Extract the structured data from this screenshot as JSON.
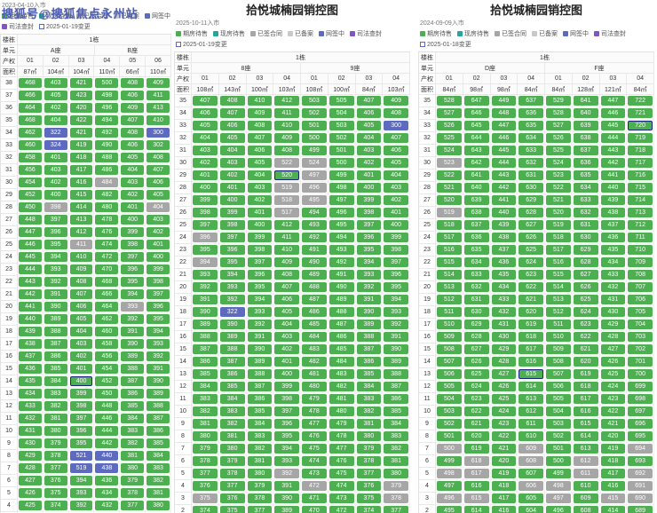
{
  "watermark": "搜狐号@搜狐焦点永州站",
  "colors": {
    "available": "#4caf50",
    "signed": "#a6a6a6",
    "online_signing": "#5c6bc0",
    "highlight_border": "#1a237e",
    "note_border": "#5c6bc0"
  },
  "panels": [
    {
      "title": "拾悦城楠园销控图",
      "date": "2023-04-10入市",
      "note": "2025-01-19变更",
      "building": "1栋",
      "row_labels": {
        "building": "楼栋",
        "unit": "单元",
        "code": "产权",
        "area": "面积"
      },
      "units": [
        {
          "name": "A座",
          "cols": 3
        },
        {
          "name": "B座",
          "cols": 3
        }
      ],
      "codes": [
        "01",
        "02",
        "03",
        "04",
        "05",
        "06"
      ],
      "areas": [
        "87㎡",
        "104㎡",
        "104㎡",
        "110㎡",
        "66㎡",
        "110㎡"
      ],
      "legend": [
        {
          "label": "期房待售",
          "color": "#4caf50"
        },
        {
          "label": "现房待售",
          "color": "#26a69a"
        },
        {
          "label": "已签合同",
          "color": "#a6a6a6"
        },
        {
          "label": "已备案",
          "color": "#c9c9c9"
        },
        {
          "label": "网签中",
          "color": "#5c6bc0"
        },
        {
          "label": "司法查封",
          "color": "#7e57c2"
        }
      ],
      "rows": [
        "38|468 403 421 500 408 409|gggggg",
        "37|466 405 423 498 406 411|gggggg",
        "36|464 402 420 496 409 413|gggggg",
        "35|468 404 422 494 407 410|gggggg",
        "34|462 322 421 492 408 300|gbgggb",
        "33|460 324 419 490 406 302|gbgggg",
        "32|458 401 418 488 405 408|gggggg",
        "31|456 403 417 486 404 407|gggggg",
        "30|454 402 416 484 403 406|gggagg",
        "29|452 400 415 482 402 405|gggggg",
        "28|450 398 414 480 401 404|gaggga",
        "27|448 397 413 478 400 403|gggggg",
        "26|447 396 412 476 399 402|gggggg",
        "25|446 395 411 474 398 401|ggaggg",
        "24|445 394 410 472 397 400|gggggg",
        "23|444 393 409 470 396 399|gggggg",
        "22|443 392 408 468 395 398|gggggg",
        "21|442 391 407 466 394 397|gggggg",
        "20|441 390 406 464 393 396|ggggag",
        "19|440 389 405 462 392 395|gggggg",
        "18|439 388 404 460 391 394|gggggg",
        "17|438 387 403 458 390 393|gggggg",
        "16|437 386 402 456 389 392|gggggg",
        "15|436 385 401 454 388 391|gggggg",
        "14|435 384 400 452 387 390|gghggg",
        "13|434 383 399 450 386 389|gggggg",
        "12|433 382 398 448 385 388|gggggg",
        "11|432 381 397 446 384 387|gggggg",
        "10|431 380 396 444 383 386|gggggg",
        "9|430 379 395 442 382 385|gggggg",
        "8|429 378 521 440 381 384|ggbbgg",
        "7|428 377 519 438 380 383|ggbbgg",
        "6|427 376 394 436 379 382|gggggg",
        "5|426 375 393 434 378 381|gggggg",
        "4|425 374 392 432 377 380|gggggg",
        "3|424 373 391 430 376 379|gggggg"
      ]
    },
    {
      "title": "拾悦城楠园销控图",
      "date": "2025-10-11入市",
      "note": "2025-01-19变更",
      "building": "1栋",
      "row_labels": {
        "building": "楼栋",
        "unit": "单元",
        "code": "产权",
        "area": "面积"
      },
      "units": [
        {
          "name": "8座",
          "cols": 4
        },
        {
          "name": "9座",
          "cols": 4
        }
      ],
      "codes": [
        "01",
        "02",
        "03",
        "04",
        "01",
        "02",
        "03",
        "04"
      ],
      "areas": [
        "108㎡",
        "143㎡",
        "100㎡",
        "103㎡",
        "108㎡",
        "100㎡",
        "84㎡",
        "103㎡"
      ],
      "legend": [
        {
          "label": "期房待售",
          "color": "#4caf50"
        },
        {
          "label": "现房待售",
          "color": "#26a69a"
        },
        {
          "label": "已签合同",
          "color": "#a6a6a6"
        },
        {
          "label": "已备案",
          "color": "#c9c9c9"
        },
        {
          "label": "网签中",
          "color": "#5c6bc0"
        },
        {
          "label": "司法查封",
          "color": "#7e57c2"
        }
      ],
      "rows": [
        "35|407 408 410 412 503 505 407 409|gggggggg",
        "34|406 407 409 411 502 504 406 408|gggggggg",
        "33|405 406 408 410 501 503 405 300|gggggggb",
        "32|404 405 407 409 500 502 404 407|gggggggg",
        "31|403 404 406 408 499 501 403 406|gggggggg",
        "30|402 403 405 522 524 500 402 405|gggaaggg",
        "29|401 402 404 520 497 499 401 404|ggghaggg",
        "28|400 401 403 519 496 498 400 403|gggaaggg",
        "27|399 400 402 518 495 497 399 402|gggaaggg",
        "26|398 399 401 517 494 496 398 401|gggagggg",
        "25|397 398 400 412 493 495 397 400|gggggggg",
        "24|396 397 399 411 492 494 396 399|aggggggg",
        "23|395 396 398 410 491 493 395 398|gggggggg",
        "22|394 395 397 409 490 492 394 397|aggggggg",
        "21|393 394 396 408 489 491 393 396|gggggggg",
        "20|392 393 395 407 488 490 392 395|gggggggg",
        "19|391 392 394 406 487 489 391 394|gggggggg",
        "18|390 322 393 405 486 488 390 393|gbgggggg",
        "17|389 390 392 404 485 487 389 392|gggggggg",
        "16|388 389 391 403 484 486 388 391|gggggggg",
        "15|387 388 390 402 483 485 387 390|gggggggg",
        "14|386 387 389 401 482 484 386 389|gggggggg",
        "13|385 386 388 400 481 483 385 388|gggggggg",
        "12|384 385 387 399 480 482 384 387|gggggggg",
        "11|383 384 386 398 479 481 383 386|gggggggg",
        "10|382 383 385 397 478 480 382 385|gggggggg",
        "9|381 382 384 396 477 479 381 384|gggggggg",
        "8|380 381 383 395 476 478 380 383|gggggggg",
        "7|379 380 382 394 475 477 379 382|gggggggg",
        "6|378 379 381 393 474 476 378 381|gggggggg",
        "5|377 378 380 392 473 475 377 380|gggagggg",
        "4|376 377 379 391 472 474 376 379|ggggagga",
        "3|375 376 378 390 471 473 375 378|agggggga",
        "2|374 375 377 389 470 472 374 377|gggggggg"
      ]
    },
    {
      "title": "拾悦城楠园销控图",
      "date": "2024-09-09入市",
      "note": "2025-01-18变更",
      "building": "1栋",
      "row_labels": {
        "building": "楼栋",
        "unit": "单元",
        "code": "产权",
        "area": "面积"
      },
      "units": [
        {
          "name": "D座",
          "cols": 4
        },
        {
          "name": "F座",
          "cols": 4
        }
      ],
      "codes": [
        "01",
        "02",
        "03",
        "04",
        "01",
        "02",
        "03",
        "04"
      ],
      "areas": [
        "84㎡",
        "98㎡",
        "98㎡",
        "84㎡",
        "84㎡",
        "128㎡",
        "121㎡",
        "84㎡"
      ],
      "legend": [
        {
          "label": "期房待售",
          "color": "#4caf50"
        },
        {
          "label": "现房待售",
          "color": "#26a69a"
        },
        {
          "label": "已签合同",
          "color": "#a6a6a6"
        },
        {
          "label": "已备案",
          "color": "#c9c9c9"
        },
        {
          "label": "网签中",
          "color": "#5c6bc0"
        },
        {
          "label": "司法查封",
          "color": "#7e57c2"
        }
      ],
      "rows": [
        "35|528 647 449 637 529 641 447 722|gggggggg",
        "34|527 646 448 636 528 640 446 721|gggggggg",
        "33|526 645 447 635 527 639 445 720|gggggggh",
        "32|525 644 446 634 526 638 444 719|gggggggg",
        "31|524 643 445 633 525 637 443 718|gggggggg",
        "30|523 642 444 632 524 636 442 717|aggggggg",
        "29|522 641 443 631 523 635 441 716|gggggggg",
        "28|521 640 442 630 522 634 440 715|gggggggg",
        "27|520 639 441 629 521 633 439 714|gggggggg",
        "26|519 638 440 628 520 632 438 713|aggggggg",
        "25|518 637 439 627 519 631 437 712|gggggggg",
        "24|517 636 438 626 518 630 436 711|gggggggg",
        "23|516 635 437 625 517 629 435 710|gggggggg",
        "22|515 634 436 624 516 628 434 709|gggggggg",
        "21|514 633 435 623 515 627 433 708|gggggggg",
        "20|513 632 434 622 514 626 432 707|gggggggg",
        "19|512 631 433 621 513 625 431 706|gggggggg",
        "18|511 630 432 620 512 624 430 705|gggggggg",
        "17|510 629 431 619 511 623 429 704|gggggggg",
        "16|509 628 430 618 510 622 428 703|gggggggg",
        "15|508 627 429 617 509 621 427 702|gggggggg",
        "14|507 626 428 616 508 620 426 701|gggggggg",
        "13|506 625 427 615 507 619 425 700|ggghgggg",
        "12|505 624 426 614 506 618 424 699|gggggggg",
        "11|504 623 425 613 505 617 423 698|gggggggg",
        "10|503 622 424 612 504 616 422 697|gggggggg",
        "9|502 621 423 611 503 615 421 696|gggggggg",
        "8|501 620 422 610 502 614 420 695|gggggggg",
        "7|500 619 421 609 501 613 419 694|aggaggga",
        "6|499 618 420 608 500 612 418 693|gagagagg",
        "5|498 617 419 607 499 611 417 692|aagggaga",
        "4|497 616 418 606 498 610 416 691|gggaagga",
        "3|496 615 417 605 497 609 415 690|aaggagaa",
        "2|495 614 416 604 496 608 414 689|gggggggg"
      ]
    }
  ]
}
